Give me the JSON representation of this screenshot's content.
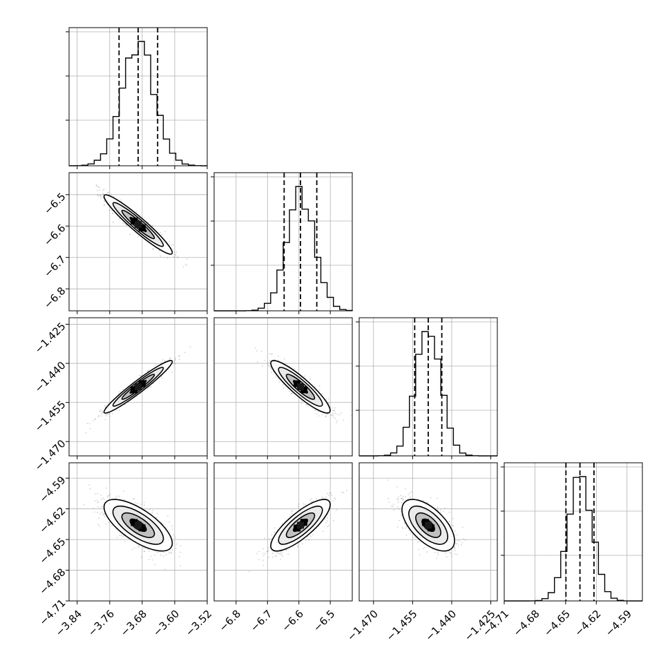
{
  "chart_data": {
    "type": "corner",
    "grid": true,
    "colors": {
      "line": "#000000",
      "grid": "#b0b0b0",
      "scatter": "#9a9a9a"
    },
    "params": [
      {
        "range": [
          -3.86,
          -3.52
        ],
        "ticks": [
          "-3.84",
          "-3.76",
          "-3.68",
          "-3.60",
          "-3.52"
        ],
        "tick_values": [
          -3.84,
          -3.76,
          -3.68,
          -3.6,
          -3.52
        ],
        "mean": -3.69,
        "sd": 0.04,
        "quantiles": [
          -3.737,
          -3.69,
          -3.642
        ]
      },
      {
        "range": [
          -6.87,
          -6.43
        ],
        "ticks": [
          "-6.8",
          "-6.7",
          "-6.6",
          "-6.5"
        ],
        "tick_values": [
          -6.8,
          -6.7,
          -6.6,
          -6.5
        ],
        "mean": -6.595,
        "sd": 0.045,
        "quantiles": [
          -6.647,
          -6.595,
          -6.543
        ]
      },
      {
        "range": [
          -1.4755,
          -1.4225
        ],
        "ticks": [
          "-1.470",
          "-1.455",
          "-1.440",
          "-1.425"
        ],
        "tick_values": [
          -1.47,
          -1.455,
          -1.44,
          -1.425
        ],
        "mean": -1.449,
        "sd": 0.0048,
        "quantiles": [
          -1.4542,
          -1.449,
          -1.4438
        ]
      },
      {
        "range": [
          -4.71,
          -4.575
        ],
        "ticks": [
          "-4.71",
          "-4.68",
          "-4.65",
          "-4.62",
          "-4.59"
        ],
        "tick_values": [
          -4.71,
          -4.68,
          -4.65,
          -4.62,
          -4.59
        ],
        "mean": -4.636,
        "sd": 0.012,
        "quantiles": [
          -4.6497,
          -4.636,
          -4.6223
        ]
      }
    ],
    "correlations": {
      "0-1": -0.95,
      "0-2": 0.96,
      "1-2": -0.9,
      "0-3": -0.7,
      "1-3": 0.8,
      "2-3": -0.6
    }
  }
}
